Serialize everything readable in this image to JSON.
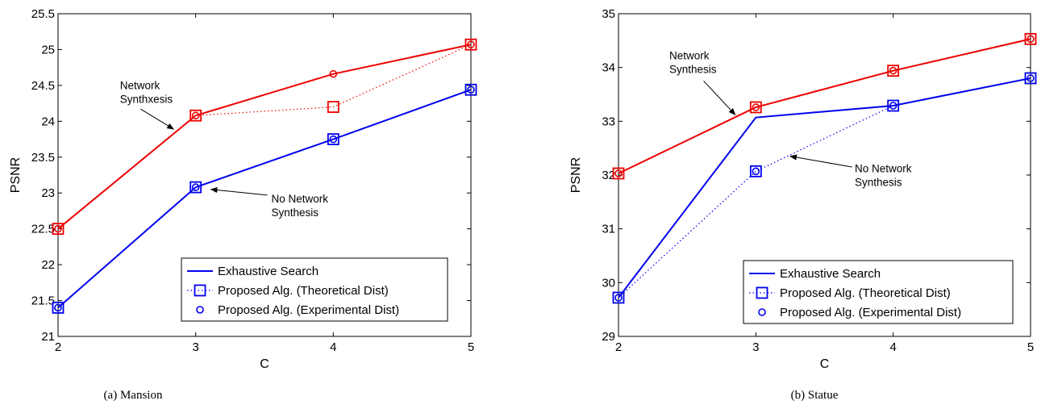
{
  "colors": {
    "exhaustive": "#0000ee",
    "network": "#ee0000",
    "axis": "#000000",
    "legend_marker": "#0000ee"
  },
  "chart_data": [
    {
      "type": "line",
      "caption": "(a)  Mansion",
      "xlabel": "C",
      "ylabel": "PSNR",
      "xlim": [
        2,
        5
      ],
      "ylim": [
        21,
        25.5
      ],
      "xticks": [
        2,
        3,
        4,
        5
      ],
      "yticks": [
        21,
        21.5,
        22,
        22.5,
        23,
        23.5,
        24,
        24.5,
        25,
        25.5
      ],
      "x": [
        2,
        3,
        4,
        5
      ],
      "grid": false,
      "legend_position": "bottom-right",
      "legend": [
        "Exhaustive Search",
        "Proposed Alg. (Theoretical Dist)",
        "Proposed Alg. (Experimental Dist)"
      ],
      "series": [
        {
          "group": "no_network",
          "style": "solid",
          "marker": "none",
          "color": "#0000ee",
          "values": [
            21.4,
            23.08,
            23.75,
            24.44
          ]
        },
        {
          "group": "no_network",
          "style": "dotted",
          "marker": "square",
          "color": "#0000ee",
          "values": [
            21.4,
            23.08,
            23.75,
            24.44
          ]
        },
        {
          "group": "no_network",
          "style": "none",
          "marker": "circle",
          "color": "#0000ee",
          "values": [
            21.4,
            23.08,
            23.75,
            24.44
          ]
        },
        {
          "group": "network",
          "style": "solid",
          "marker": "none",
          "color": "#ee0000",
          "values": [
            22.5,
            24.08,
            24.66,
            25.07
          ]
        },
        {
          "group": "network",
          "style": "dotted",
          "marker": "square",
          "color": "#ee0000",
          "values": [
            22.5,
            24.08,
            24.2,
            25.07
          ]
        },
        {
          "group": "network",
          "style": "none",
          "marker": "circle",
          "color": "#ee0000",
          "values": [
            22.5,
            24.08,
            24.66,
            25.07
          ]
        }
      ],
      "annotations": [
        {
          "lines": [
            "Network",
            "Synthxesis"
          ],
          "text_anchor": [
            2.45,
            24.45
          ],
          "arrow_from": [
            2.6,
            24.17
          ],
          "arrow_to": [
            2.84,
            23.89
          ]
        },
        {
          "lines": [
            "No Network",
            "Synthesis"
          ],
          "text_anchor": [
            3.55,
            22.87
          ],
          "arrow_from": [
            3.52,
            22.97
          ],
          "arrow_to": [
            3.11,
            23.05
          ]
        }
      ]
    },
    {
      "type": "line",
      "caption": "(b)  Statue",
      "xlabel": "C",
      "ylabel": "PSNR",
      "xlim": [
        2,
        5
      ],
      "ylim": [
        29,
        35
      ],
      "xticks": [
        2,
        3,
        4,
        5
      ],
      "yticks": [
        29,
        30,
        31,
        32,
        33,
        34,
        35
      ],
      "x": [
        2,
        3,
        4,
        5
      ],
      "grid": false,
      "legend_position": "bottom-right",
      "legend": [
        "Exhaustive Search",
        "Proposed Alg. (Theoretical Dist)",
        "Proposed Alg. (Experimental Dist)"
      ],
      "series": [
        {
          "group": "no_network",
          "style": "solid",
          "marker": "none",
          "color": "#0000ee",
          "values": [
            29.72,
            33.07,
            33.29,
            33.8
          ]
        },
        {
          "group": "no_network",
          "style": "dotted",
          "marker": "square",
          "color": "#0000ee",
          "values": [
            29.72,
            32.07,
            33.29,
            33.8
          ]
        },
        {
          "group": "no_network",
          "style": "none",
          "marker": "circle",
          "color": "#0000ee",
          "values": [
            29.72,
            32.07,
            33.29,
            33.8
          ]
        },
        {
          "group": "network",
          "style": "solid",
          "marker": "none",
          "color": "#ee0000",
          "values": [
            32.03,
            33.26,
            33.94,
            34.53
          ]
        },
        {
          "group": "network",
          "style": "dotted",
          "marker": "square",
          "color": "#ee0000",
          "values": [
            32.03,
            33.26,
            33.94,
            34.53
          ]
        },
        {
          "group": "network",
          "style": "none",
          "marker": "circle",
          "color": "#ee0000",
          "values": [
            32.03,
            33.26,
            33.94,
            34.53
          ]
        }
      ],
      "annotations": [
        {
          "lines": [
            "Network",
            "Synthesis"
          ],
          "text_anchor": [
            2.37,
            34.15
          ],
          "arrow_from": [
            2.62,
            33.75
          ],
          "arrow_to": [
            2.85,
            33.12
          ]
        },
        {
          "lines": [
            "No Network",
            "Synthesis"
          ],
          "text_anchor": [
            3.72,
            32.05
          ],
          "arrow_from": [
            3.7,
            32.15
          ],
          "arrow_to": [
            3.25,
            32.35
          ]
        }
      ]
    }
  ]
}
